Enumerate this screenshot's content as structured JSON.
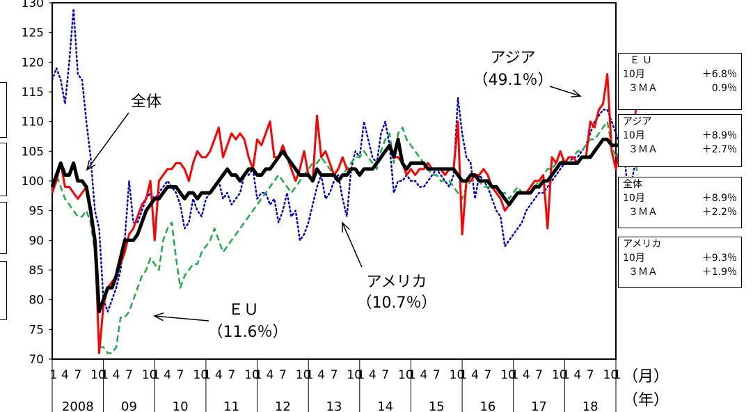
{
  "chart_data": {
    "type": "line",
    "ylim": [
      70,
      130
    ],
    "yticks": [
      70,
      75,
      80,
      85,
      90,
      95,
      100,
      105,
      110,
      115,
      120,
      125,
      130
    ],
    "month_ticks": [
      "1",
      "4",
      "7",
      "10"
    ],
    "years": [
      "2008",
      "09",
      "10",
      "11",
      "12",
      "13",
      "14",
      "15",
      "16",
      "17",
      "18"
    ],
    "x_unit_label": "（月）",
    "year_unit_label": "（年）",
    "grid": false,
    "series": [
      {
        "key": "total",
        "color": "#000000",
        "dash": "solid",
        "width": 5,
        "values": [
          99,
          101,
          103,
          101,
          101,
          103,
          100,
          100,
          99,
          95,
          90,
          78,
          80,
          82,
          82,
          84,
          87,
          90,
          90,
          90,
          91,
          93,
          95,
          96,
          97,
          97,
          98,
          99,
          99,
          99,
          98,
          97,
          98,
          98,
          97,
          98,
          98,
          98,
          99,
          100,
          101,
          102,
          101,
          101,
          100,
          101,
          102,
          102,
          101,
          101,
          102,
          102,
          103,
          104,
          105,
          104,
          103,
          102,
          101,
          101,
          101,
          100,
          102,
          101,
          101,
          101,
          101,
          100,
          101,
          101,
          102,
          102,
          101,
          102,
          102,
          102,
          103,
          104,
          105,
          106,
          104,
          107,
          103,
          102,
          103,
          103,
          103,
          103,
          102,
          102,
          102,
          102,
          102,
          102,
          102,
          101,
          100,
          100,
          101,
          101,
          100,
          100,
          100,
          99,
          99,
          98,
          97,
          96,
          97,
          98,
          98,
          98,
          98,
          99,
          99,
          100,
          100,
          101,
          102,
          103,
          103,
          103,
          103,
          103,
          104,
          104,
          104,
          105,
          106,
          107,
          107,
          106,
          106,
          106,
          105,
          104,
          106,
          106
        ]
      },
      {
        "key": "asia",
        "color": "#ff0000",
        "dash": "solid",
        "width": 3,
        "values": [
          98,
          100,
          103,
          99,
          99,
          98,
          97,
          98,
          99,
          95,
          90,
          71,
          79,
          82,
          83,
          84,
          86,
          88,
          91,
          92,
          94,
          96,
          97,
          100,
          90,
          100,
          101,
          102,
          102,
          103,
          103,
          102,
          100,
          103,
          105,
          104,
          104,
          105,
          107,
          109,
          104,
          106,
          108,
          107,
          108,
          107,
          104,
          102,
          107,
          106,
          108,
          110,
          104,
          104,
          106,
          104,
          102,
          100,
          102,
          105,
          101,
          100,
          111,
          104,
          105,
          103,
          101,
          102,
          104,
          102,
          102,
          102,
          101,
          102,
          102,
          102,
          103,
          104,
          105,
          106,
          104,
          104,
          103,
          101,
          102,
          101,
          102,
          102,
          103,
          102,
          102,
          102,
          101,
          102,
          102,
          110,
          91,
          100,
          100,
          101,
          101,
          102,
          101,
          99,
          98,
          97,
          95,
          96,
          97,
          98,
          98,
          98,
          99,
          100,
          100,
          101,
          92,
          104,
          103,
          105,
          103,
          104,
          104,
          103,
          104,
          104,
          110,
          109,
          112,
          113,
          118,
          105,
          102,
          106,
          106,
          107,
          108,
          114
        ]
      },
      {
        "key": "usa",
        "color": "#0000cc",
        "dash": "dotted",
        "width": 2.5,
        "values": [
          117,
          119,
          117,
          113,
          120,
          129,
          118,
          117,
          110,
          104,
          95,
          92,
          80,
          78,
          80,
          82,
          85,
          90,
          100,
          93,
          93,
          95,
          97,
          98,
          97,
          98,
          99,
          100,
          99,
          98,
          96,
          92,
          93,
          97,
          95,
          94,
          97,
          98,
          99,
          100,
          97,
          98,
          96,
          97,
          98,
          101,
          101,
          102,
          97,
          98,
          98,
          96,
          97,
          93,
          95,
          98,
          94,
          95,
          90,
          91,
          93,
          96,
          99,
          101,
          97,
          98,
          100,
          101,
          97,
          94,
          102,
          105,
          104,
          110,
          107,
          104,
          103,
          108,
          110,
          106,
          98,
          100,
          100,
          101,
          100,
          100,
          99,
          99,
          100,
          101,
          102,
          101,
          100,
          99,
          101,
          114,
          108,
          104,
          103,
          97,
          101,
          100,
          99,
          97,
          95,
          94,
          89,
          90,
          91,
          92,
          93,
          95,
          96,
          97,
          98,
          98,
          99,
          100,
          101,
          102,
          103,
          103,
          104,
          104,
          105,
          106,
          108,
          110,
          111,
          112,
          112,
          110,
          108,
          106,
          104,
          97,
          101,
          105
        ]
      },
      {
        "key": "eu",
        "color": "#22aa44",
        "dash": "dashed",
        "width": 2.5,
        "values": [
          98,
          101,
          99,
          97,
          96,
          95,
          94,
          94,
          95,
          93,
          88,
          72,
          72,
          71,
          71,
          72,
          77,
          77,
          78,
          80,
          82,
          84,
          85,
          87,
          86,
          85,
          90,
          92,
          93,
          87,
          82,
          84,
          85,
          86,
          86,
          88,
          89,
          90,
          92,
          90,
          88,
          89,
          90,
          91,
          92,
          93,
          94,
          95,
          96,
          97,
          98,
          99,
          100,
          101,
          100,
          99,
          98,
          99,
          100,
          101,
          102,
          103,
          103,
          104,
          103,
          102,
          101,
          100,
          101,
          102,
          103,
          104,
          104,
          105,
          104,
          103,
          102,
          105,
          107,
          108,
          103,
          108,
          109,
          107,
          106,
          105,
          104,
          103,
          102,
          101,
          101,
          100,
          100,
          100,
          99,
          98,
          97,
          99,
          100,
          100,
          100,
          99,
          99,
          99,
          98,
          98,
          98,
          97,
          98,
          99,
          98,
          98,
          99,
          99,
          100,
          101,
          102,
          102,
          103,
          103,
          104,
          104,
          104,
          105,
          105,
          106,
          107,
          107,
          108,
          109,
          110,
          106,
          104,
          105,
          106,
          107,
          108,
          101
        ]
      }
    ],
    "annotations": [
      {
        "key": "total",
        "label": "全体"
      },
      {
        "key": "eu",
        "label": "ＥＵ",
        "share": "（11.6％）"
      },
      {
        "key": "usa",
        "label": "アメリカ",
        "share": "（10.7％）"
      },
      {
        "key": "asia",
        "label": "アジア",
        "share": "（49.1％）"
      }
    ]
  },
  "legend": [
    {
      "title": "ＥＵ",
      "rows": [
        {
          "label": "10月",
          "value": "＋6.8％"
        },
        {
          "label": "３ＭＡ",
          "value": "0.9％"
        }
      ]
    },
    {
      "title": "アジア",
      "rows": [
        {
          "label": "10月",
          "value": "＋8.9％"
        },
        {
          "label": "３ＭＡ",
          "value": "＋2.7％"
        }
      ]
    },
    {
      "title": "全体",
      "rows": [
        {
          "label": "10月",
          "value": "＋8.9％"
        },
        {
          "label": "３ＭＡ",
          "value": "＋2.2％"
        }
      ]
    },
    {
      "title": "アメリカ",
      "rows": [
        {
          "label": "10月",
          "value": "＋9.3％"
        },
        {
          "label": "３ＭＡ",
          "value": "＋1.9％"
        }
      ]
    }
  ]
}
